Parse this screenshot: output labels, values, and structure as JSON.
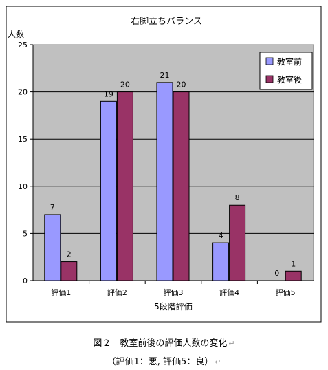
{
  "chart_data": {
    "type": "bar",
    "title": "右脚立ちバランス",
    "ylabel": "人数",
    "xlabel": "5段階評価",
    "categories": [
      "評価1",
      "評価2",
      "評価3",
      "評価4",
      "評価5"
    ],
    "series": [
      {
        "name": "教室前",
        "values": [
          7,
          19,
          21,
          4,
          0
        ],
        "color": "#9999ff"
      },
      {
        "name": "教室後",
        "values": [
          2,
          20,
          20,
          8,
          1
        ],
        "color": "#993366"
      }
    ],
    "ylim": [
      0,
      25
    ],
    "yticks": [
      0,
      5,
      10,
      15,
      20,
      25
    ],
    "grid": true,
    "legend_position": "top-right",
    "plot_background": "#c0c0c0"
  },
  "caption": {
    "line1": "図２　教室前後の評価人数の変化",
    "line2": "（評価1：悪, 評価5：良）",
    "return_mark": "↵"
  }
}
